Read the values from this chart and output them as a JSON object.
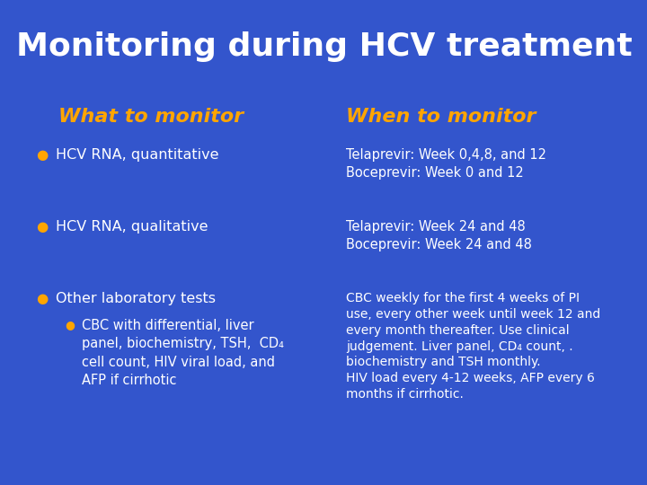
{
  "title": "Monitoring during HCV treatment",
  "title_color": "#FFFFFF",
  "title_fontsize": 26,
  "background_color": "#3355CC",
  "header_color": "#FFA500",
  "header_left": "What to monitor",
  "header_right": "When to monitor",
  "header_fontsize": 16,
  "bullet_color": "#FFA500",
  "text_color": "#FFFFFF",
  "body_fontsize": 11.5,
  "small_fontsize": 10.5,
  "left_items": [
    "HCV RNA, quantitative",
    "HCV RNA, qualitative",
    "Other laboratory tests"
  ],
  "left_sub_item": "CBC with differential, liver\npanel, biochemistry, TSH,  CD₄\ncell count, HIV viral load, and\nAFP if cirrhotic",
  "right_item1": "Telaprevir: Week 0,4,8, and 12\nBoceprevir: Week 0 and 12",
  "right_item2": "Telaprevir: Week 24 and 48\nBoceprevir: Week 24 and 48",
  "right_item3": "CBC weekly for the first 4 weeks of PI\nuse, every other week until week 12 and\nevery month thereafter. Use clinical\njudgement. Liver panel, CD₄ count, .\nbiochemistry and TSH monthly.\nHIV load every 4-12 weeks, AFP every 6\nmonths if cirrhotic."
}
